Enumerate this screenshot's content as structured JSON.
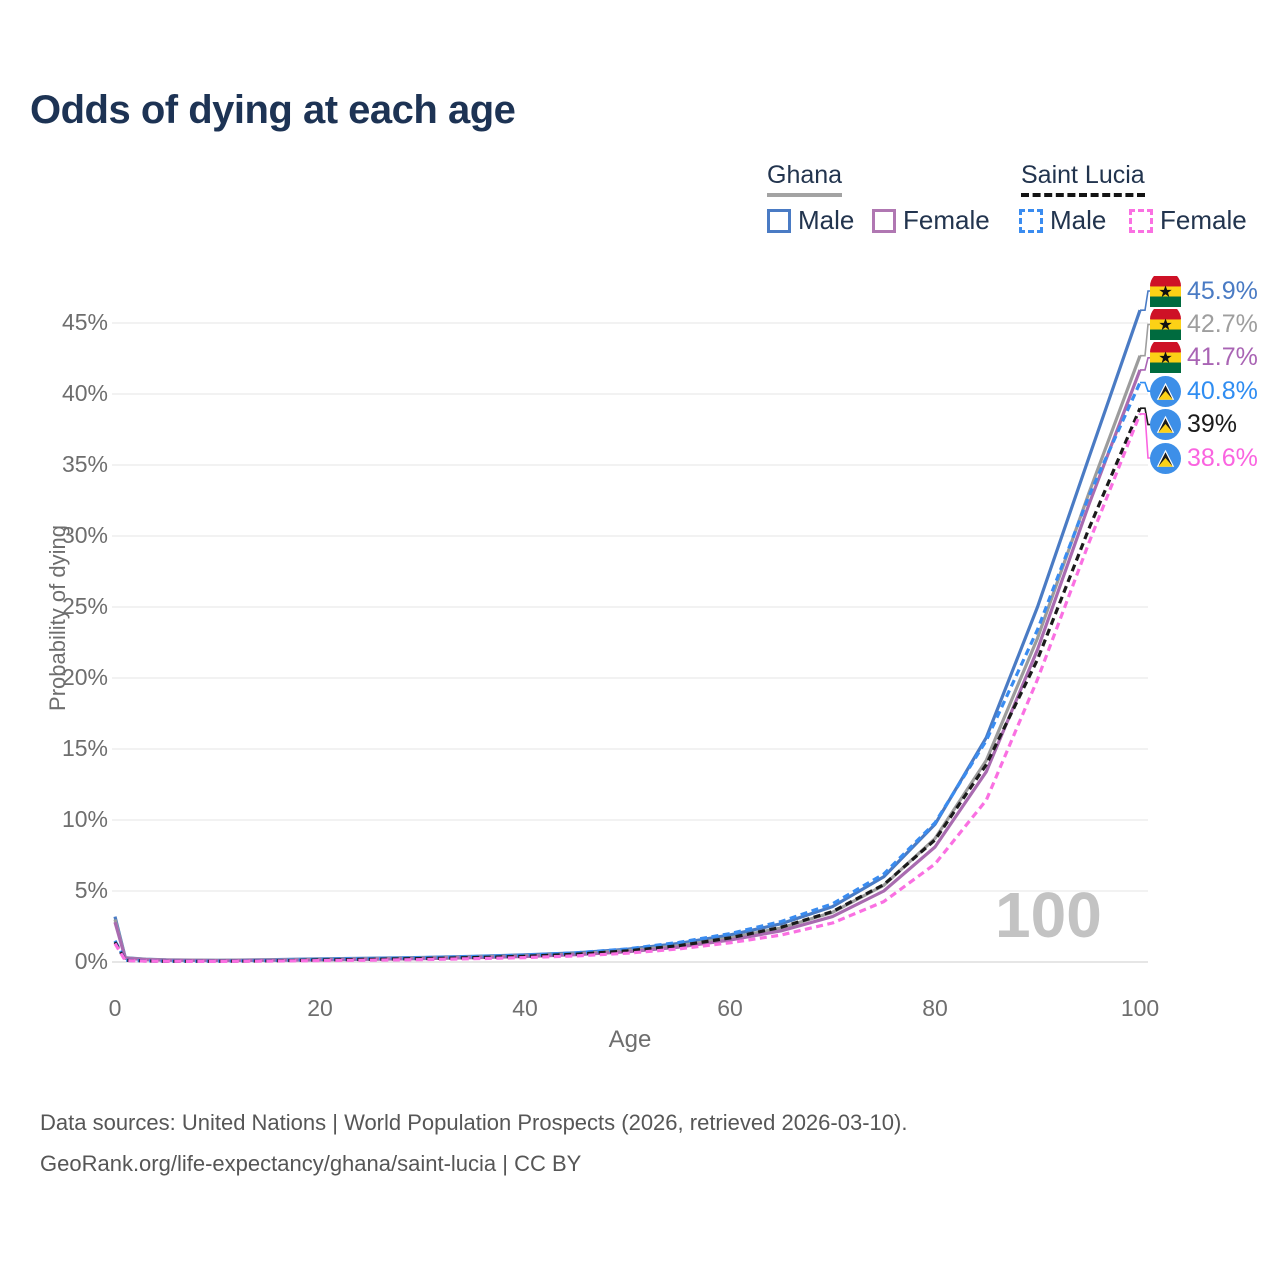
{
  "title": "Odds of dying at each age",
  "legend": {
    "groups": [
      {
        "name": "Ghana",
        "style": "solid",
        "items": [
          {
            "label": "Male",
            "color": "#4a7bc4"
          },
          {
            "label": "Female",
            "color": "#b077b2"
          }
        ]
      },
      {
        "name": "Saint Lucia",
        "style": "dashed",
        "items": [
          {
            "label": "Male",
            "color": "#3a8cf0"
          },
          {
            "label": "Female",
            "color": "#fa70e2"
          }
        ]
      }
    ]
  },
  "watermark": "100",
  "footer": {
    "line1": "Data sources: United Nations | World Population Prospects (2026, retrieved 2026-03-10).",
    "line2": "GeoRank.org/life-expectancy/ghana/saint-lucia | CC BY"
  },
  "colors": {
    "title_text": "#1d3354",
    "legend_text": "#22344e",
    "tick_text": "#6e6e6e",
    "gridline": "#ebebeb",
    "zero_line": "#d8d8d8",
    "watermark": "#c3c3c3"
  },
  "chart_data": {
    "type": "line",
    "title": "Odds of dying at each age",
    "xlabel": "Age",
    "ylabel": "Probability of dying",
    "xlim": [
      0,
      100
    ],
    "ylim": [
      0,
      47.5
    ],
    "x_ticks": [
      0,
      20,
      40,
      60,
      80,
      100
    ],
    "y_tick_labels": [
      "0%",
      "5%",
      "10%",
      "15%",
      "20%",
      "25%",
      "30%",
      "35%",
      "40%",
      "45%"
    ],
    "y_tick_values": [
      0,
      5,
      10,
      15,
      20,
      25,
      30,
      35,
      40,
      45
    ],
    "grid": "horizontal-only",
    "legend_position": "top-right",
    "x": [
      0,
      1,
      3,
      5,
      10,
      15,
      20,
      25,
      30,
      35,
      40,
      45,
      50,
      55,
      60,
      65,
      70,
      75,
      80,
      85,
      90,
      95,
      100
    ],
    "series": [
      {
        "key": "ghana_male",
        "name": "Ghana Male",
        "color": "#4a7bc4",
        "dash": false,
        "values": [
          3.2,
          0.3,
          0.2,
          0.15,
          0.12,
          0.16,
          0.22,
          0.27,
          0.32,
          0.4,
          0.5,
          0.65,
          0.9,
          1.3,
          1.9,
          2.7,
          3.9,
          6.0,
          9.7,
          15.8,
          25.0,
          35.5,
          45.9
        ]
      },
      {
        "key": "ghana_both",
        "name": "Ghana Both sexes",
        "color": "#9c9c9c",
        "dash": false,
        "values": [
          3.0,
          0.28,
          0.18,
          0.14,
          0.11,
          0.14,
          0.18,
          0.23,
          0.28,
          0.35,
          0.44,
          0.58,
          0.8,
          1.15,
          1.7,
          2.4,
          3.5,
          5.4,
          8.7,
          14.2,
          22.8,
          33.0,
          42.7
        ]
      },
      {
        "key": "ghana_female",
        "name": "Ghana Female",
        "color": "#a96bb0",
        "dash": false,
        "values": [
          2.8,
          0.26,
          0.17,
          0.13,
          0.1,
          0.12,
          0.15,
          0.19,
          0.24,
          0.31,
          0.39,
          0.52,
          0.72,
          1.05,
          1.55,
          2.2,
          3.2,
          5.0,
          8.1,
          13.4,
          22.0,
          32.2,
          41.7
        ]
      },
      {
        "key": "sl_male",
        "name": "Saint Lucia Male",
        "color": "#3a8cf0",
        "dash": true,
        "values": [
          1.5,
          0.12,
          0.08,
          0.06,
          0.06,
          0.1,
          0.18,
          0.24,
          0.3,
          0.38,
          0.48,
          0.65,
          0.92,
          1.38,
          2.0,
          2.85,
          4.1,
          6.2,
          9.8,
          15.6,
          23.4,
          32.8,
          40.8
        ]
      },
      {
        "key": "sl_both",
        "name": "Saint Lucia Both sexes",
        "color": "#1b1b1b",
        "dash": true,
        "values": [
          1.4,
          0.11,
          0.07,
          0.05,
          0.05,
          0.08,
          0.14,
          0.19,
          0.24,
          0.31,
          0.4,
          0.55,
          0.78,
          1.15,
          1.7,
          2.45,
          3.55,
          5.45,
          8.6,
          13.9,
          21.3,
          30.5,
          39.0
        ]
      },
      {
        "key": "sl_female",
        "name": "Saint Lucia Female",
        "color": "#fa70e2",
        "dash": true,
        "values": [
          1.3,
          0.1,
          0.06,
          0.05,
          0.04,
          0.06,
          0.1,
          0.13,
          0.17,
          0.23,
          0.31,
          0.43,
          0.62,
          0.92,
          1.35,
          1.9,
          2.75,
          4.25,
          6.9,
          11.4,
          19.9,
          29.5,
          38.6
        ]
      }
    ],
    "end_labels": [
      {
        "text": "45.9%",
        "series": "ghana_male",
        "flag": "ghana",
        "color": "#4a7bc4"
      },
      {
        "text": "42.7%",
        "series": "ghana_both",
        "flag": "ghana",
        "color": "#9e9e9e"
      },
      {
        "text": "41.7%",
        "series": "ghana_female",
        "flag": "ghana",
        "color": "#a964b4"
      },
      {
        "text": "40.8%",
        "series": "sl_male",
        "flag": "saint-lucia",
        "color": "#2f8df2"
      },
      {
        "text": "39%",
        "series": "sl_both",
        "flag": "saint-lucia",
        "color": "#1b1b1b"
      },
      {
        "text": "38.6%",
        "series": "sl_female",
        "flag": "saint-lucia",
        "color": "#fa64e0"
      }
    ]
  }
}
